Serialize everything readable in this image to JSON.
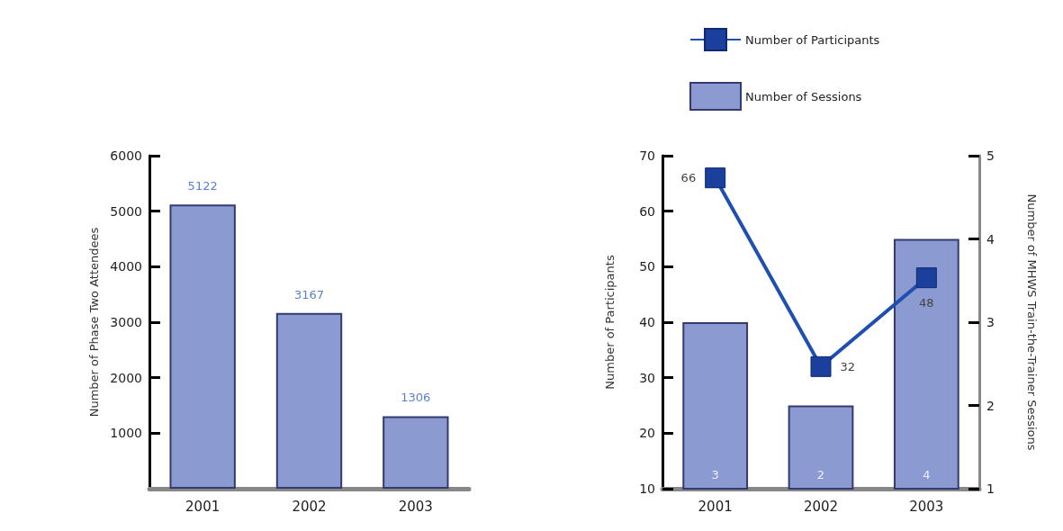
{
  "chart_data": [
    {
      "type": "bar",
      "categories": [
        "2001",
        "2002",
        "2003"
      ],
      "values": [
        5122,
        3167,
        1306
      ],
      "color": "#8c9ad2",
      "ylabel": "Number of Phase Two Attendees",
      "ylim": [
        0,
        6000
      ],
      "yticks": [
        1000,
        2000,
        3000,
        4000,
        5000,
        6000
      ],
      "data_labels": true
    },
    {
      "type": "bar",
      "categories": [
        "2001",
        "2002",
        "2003"
      ],
      "series": [
        {
          "name": "Number of Participants",
          "type": "line",
          "color": "#1f4fb0",
          "values": [
            66,
            32,
            48
          ]
        },
        {
          "name": "Number of Sessions",
          "axis": "y2",
          "color": "#8c9ad2",
          "values": [
            3,
            2,
            4
          ]
        }
      ],
      "ylabel": "Number of Participants",
      "y2label": "Number of MHWS Train-the-Trainer Sessions",
      "ylim": [
        10,
        70
      ],
      "yticks": [
        10,
        20,
        30,
        40,
        50,
        60,
        70
      ],
      "y2lim": [
        1,
        5
      ],
      "y2ticks": [
        1,
        2,
        3,
        4,
        5
      ],
      "legend": "top",
      "marker": "square",
      "data_labels": true
    }
  ]
}
